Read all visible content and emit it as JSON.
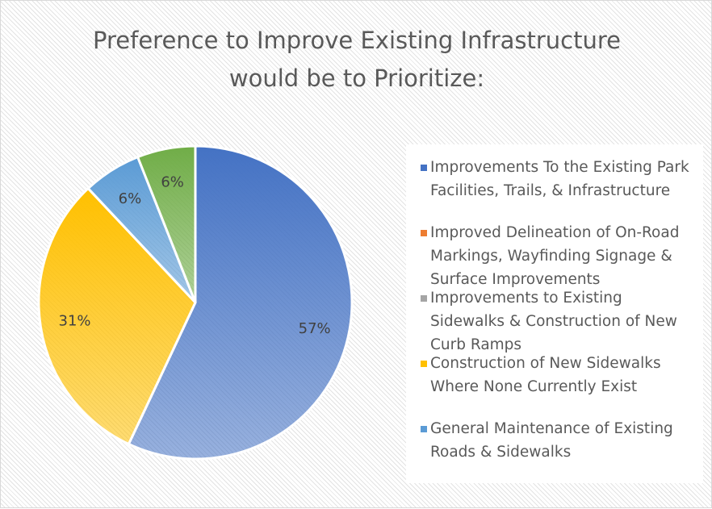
{
  "chart_data": {
    "type": "pie",
    "title": "Preference to Improve Existing Infrastructure would be to Prioritize:",
    "categories": [
      "Improvements To the Existing Park Facilities, Trails, & Infrastructure",
      "Improved Delineation of On-Road Markings, Wayfinding Signage & Surface Improvements",
      "Improvements to Existing Sidewalks & Construction of New Curb Ramps",
      "Construction of New Sidewalks Where None Currently Exist",
      "General Maintenance of Existing Roads & Sidewalks",
      null
    ],
    "values": [
      57,
      0,
      0,
      31,
      6,
      6
    ],
    "value_labels": [
      "57%",
      null,
      null,
      "31%",
      "6%",
      "6%"
    ],
    "colors": [
      "#4472c4",
      "#ed7d31",
      "#a5a5a5",
      "#ffc000",
      "#5b9bd5",
      "#70ad47"
    ],
    "legend": "right"
  }
}
